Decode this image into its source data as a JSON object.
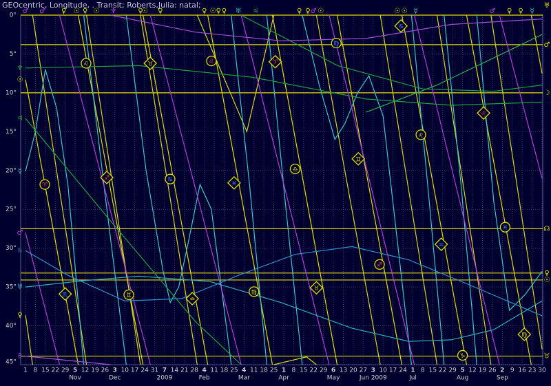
{
  "chart_data": {
    "type": "line",
    "title": "GEOcentric, Longitude, . Transit; Roberts,Julia: natal;",
    "xlim": [
      0,
      364
    ],
    "ylim": [
      0,
      45
    ],
    "grid": true,
    "yticks": [
      {
        "value": 0,
        "label": "0°"
      },
      {
        "value": 5,
        "label": "5°"
      },
      {
        "value": 10,
        "label": "10°"
      },
      {
        "value": 15,
        "label": "15°"
      },
      {
        "value": 20,
        "label": "20°"
      },
      {
        "value": 25,
        "label": "25°"
      },
      {
        "value": 30,
        "label": "30°"
      },
      {
        "value": 35,
        "label": "35°"
      },
      {
        "value": 40,
        "label": "40°"
      },
      {
        "value": 45,
        "label": "45°"
      }
    ],
    "xticks": [
      {
        "value": 0,
        "label": "1"
      },
      {
        "value": 7,
        "label": "8"
      },
      {
        "value": 14,
        "label": "15"
      },
      {
        "value": 21,
        "label": "22"
      },
      {
        "value": 28,
        "label": "29"
      },
      {
        "value": 35,
        "label": "5"
      },
      {
        "value": 42,
        "label": "12"
      },
      {
        "value": 49,
        "label": "19"
      },
      {
        "value": 56,
        "label": "26"
      },
      {
        "value": 63,
        "label": "3"
      },
      {
        "value": 70,
        "label": "10"
      },
      {
        "value": 77,
        "label": "17"
      },
      {
        "value": 84,
        "label": "24"
      },
      {
        "value": 91,
        "label": "31"
      },
      {
        "value": 98,
        "label": "7"
      },
      {
        "value": 105,
        "label": "14"
      },
      {
        "value": 112,
        "label": "21"
      },
      {
        "value": 119,
        "label": "28"
      },
      {
        "value": 126,
        "label": "4"
      },
      {
        "value": 133,
        "label": "11"
      },
      {
        "value": 140,
        "label": "18"
      },
      {
        "value": 147,
        "label": "25"
      },
      {
        "value": 154,
        "label": "4"
      },
      {
        "value": 161,
        "label": "11"
      },
      {
        "value": 168,
        "label": "18"
      },
      {
        "value": 175,
        "label": "25"
      },
      {
        "value": 182,
        "label": "1"
      },
      {
        "value": 189,
        "label": "8"
      },
      {
        "value": 196,
        "label": "15"
      },
      {
        "value": 203,
        "label": "22"
      },
      {
        "value": 210,
        "label": "29"
      },
      {
        "value": 217,
        "label": "6"
      },
      {
        "value": 224,
        "label": "13"
      },
      {
        "value": 231,
        "label": "20"
      },
      {
        "value": 238,
        "label": "27"
      },
      {
        "value": 245,
        "label": "3"
      },
      {
        "value": 252,
        "label": "10"
      },
      {
        "value": 259,
        "label": "17"
      },
      {
        "value": 266,
        "label": "24"
      },
      {
        "value": 273,
        "label": "1"
      },
      {
        "value": 280,
        "label": "8"
      },
      {
        "value": 287,
        "label": "15"
      },
      {
        "value": 294,
        "label": "22"
      },
      {
        "value": 301,
        "label": "29"
      },
      {
        "value": 308,
        "label": "5"
      },
      {
        "value": 315,
        "label": "12"
      },
      {
        "value": 322,
        "label": "19"
      },
      {
        "value": 329,
        "label": "26"
      },
      {
        "value": 336,
        "label": "2"
      },
      {
        "value": 343,
        "label": "9"
      },
      {
        "value": 350,
        "label": "16"
      },
      {
        "value": 357,
        "label": "23"
      },
      {
        "value": 364,
        "label": "30"
      }
    ],
    "month_labels": [
      {
        "value": 35,
        "label": "Nov"
      },
      {
        "value": 63,
        "label": "Dec"
      },
      {
        "value": 98,
        "label": "2009"
      },
      {
        "value": 126,
        "label": "Feb"
      },
      {
        "value": 154,
        "label": "Mar"
      },
      {
        "value": 182,
        "label": "Apr"
      },
      {
        "value": 217,
        "label": "May"
      },
      {
        "value": 245,
        "label": "Jun 2009"
      },
      {
        "value": 273,
        "label": "Jul"
      },
      {
        "value": 308,
        "label": "Aug"
      },
      {
        "value": 336,
        "label": "Sep"
      }
    ],
    "natal": [
      {
        "glyph": "♅",
        "value": 0,
        "color": "#e0e000"
      },
      {
        "glyph": "♂",
        "value": 3.8,
        "color": "#e0e000"
      },
      {
        "glyph": "☽",
        "value": 10,
        "color": "#e0e000"
      },
      {
        "glyph": "☊",
        "value": 27.5,
        "color": "#e0e000"
      },
      {
        "glyph": "♀",
        "value": 33.2,
        "color": "#e0e000"
      },
      {
        "glyph": "☉",
        "value": 34.1,
        "color": "#e0e000"
      },
      {
        "glyph": "♉",
        "value": 43.9,
        "color": "#e0e000"
      }
    ],
    "series": [
      {
        "glyph": "☉",
        "color": "#e0e000",
        "x": [
          0,
          37.2,
          37.2,
          37.2,
          82.8,
          82.8,
          82.8,
          128.4,
          128.4,
          128.4,
          174,
          174,
          174,
          219.6,
          219.6,
          219.6,
          265.2,
          265.2,
          265.2,
          310.8,
          310.8,
          310.8,
          356.4,
          356.4,
          356.4,
          364
        ],
        "values": [
          8.3,
          45,
          null,
          0,
          45,
          null,
          0,
          45,
          null,
          0,
          45,
          null,
          0,
          45,
          null,
          0,
          45,
          null,
          0,
          45,
          null,
          0,
          45,
          null,
          0,
          7.5
        ]
      },
      {
        "glyph": "♀",
        "color": "#d8d820",
        "x": [
          0,
          5,
          5,
          5,
          43,
          43,
          43,
          81,
          81,
          81,
          121,
          121,
          121,
          156,
          175,
          175,
          175,
          198,
          205,
          205,
          205,
          250,
          250,
          250,
          290,
          290,
          290,
          328,
          328,
          328,
          364
        ],
        "values": [
          38.6,
          45,
          null,
          0,
          45,
          null,
          0,
          45,
          null,
          0,
          45,
          null,
          0,
          15,
          0,
          null,
          45,
          44,
          45,
          null,
          0,
          45,
          null,
          0,
          45,
          null,
          0,
          45,
          null,
          0,
          43
        ]
      },
      {
        "glyph": "☿",
        "color": "#40c8c8",
        "x": [
          0,
          7,
          14,
          22,
          30,
          41,
          41,
          41,
          56,
          71,
          71,
          71,
          85,
          97,
          102,
          108,
          115,
          123,
          131,
          145,
          145,
          145,
          158,
          170,
          170,
          170,
          183,
          195,
          195,
          195,
          207,
          218,
          225,
          234,
          242,
          252,
          272,
          272,
          272,
          284,
          295,
          295,
          295,
          307,
          318,
          318,
          318,
          330,
          341,
          352,
          364
        ],
        "values": [
          20.1,
          15,
          7,
          12,
          22,
          45,
          null,
          0,
          23,
          45,
          null,
          0,
          20,
          33,
          37,
          35,
          29,
          21.8,
          25,
          45,
          null,
          0,
          22,
          45,
          null,
          0,
          24,
          45,
          null,
          0,
          9,
          16,
          14,
          10,
          7.8,
          13,
          45,
          null,
          0,
          23,
          45,
          null,
          0,
          22,
          45,
          null,
          0,
          24,
          38,
          36,
          33
        ]
      },
      {
        "glyph": "♂",
        "color": "#b040e0",
        "x": [
          0,
          24,
          24,
          24,
          88,
          88,
          88,
          152,
          152,
          152,
          214,
          214,
          214,
          274,
          274,
          274,
          334,
          334,
          334,
          364
        ],
        "values": [
          28,
          45,
          null,
          0,
          45,
          null,
          0,
          45,
          null,
          0,
          45,
          null,
          0,
          45,
          null,
          0,
          45,
          null,
          0,
          21
        ]
      },
      {
        "glyph": "♃",
        "color": "#20a040",
        "x": [
          0,
          60,
          120,
          152,
          152,
          152,
          220,
          280,
          330,
          364
        ],
        "values": [
          13.3,
          26.5,
          39.5,
          45,
          null,
          0,
          6.5,
          9.5,
          9.8,
          9.0
        ]
      },
      {
        "glyph": "♆",
        "color": "#20a040",
        "x": [
          0,
          80,
          160,
          240,
          300,
          364
        ],
        "values": [
          6.8,
          6.5,
          8.0,
          10.8,
          11.6,
          11.2
        ]
      },
      {
        "color": "#30b050",
        "x": [
          240,
          290,
          330,
          364
        ],
        "values": [
          12.5,
          9,
          5.5,
          2.5
        ]
      },
      {
        "glyph": "♄",
        "color": "#3090d0",
        "x": [
          0,
          30,
          70,
          110,
          150,
          190,
          230,
          270,
          310,
          364
        ],
        "values": [
          30.3,
          33.5,
          36.8,
          36.5,
          33.5,
          30.8,
          29.8,
          31.5,
          34.5,
          38.7
        ]
      },
      {
        "glyph": "♅",
        "color": "#30b0c0",
        "x": [
          0,
          40,
          80,
          130,
          180,
          230,
          270,
          300,
          330,
          364
        ],
        "values": [
          35,
          34.2,
          33.6,
          34.3,
          37,
          40.3,
          42,
          41.8,
          40.5,
          36.8
        ]
      },
      {
        "glyph": "♇",
        "color": "#a050e0",
        "x": [
          0,
          60,
          60,
          60,
          120,
          180,
          240,
          300,
          364
        ],
        "values": [
          43.9,
          45,
          null,
          0,
          2.2,
          3.3,
          3.0,
          1.2,
          0.5
        ]
      }
    ],
    "markers": [
      {
        "x": 42.7,
        "value": 6.2,
        "glyph": "♌",
        "shape": "circle",
        "color": "#e0e000"
      },
      {
        "x": 87.9,
        "value": 6.2,
        "glyph": "♉",
        "shape": "diamond",
        "color": "#e0e000"
      },
      {
        "x": 131,
        "value": 5.9,
        "glyph": "♌",
        "shape": "circle",
        "color": "#ff4040"
      },
      {
        "x": 176,
        "value": 6.0,
        "glyph": "♈",
        "shape": "diamond",
        "color": "#ff4040"
      },
      {
        "x": 219,
        "value": 3.6,
        "glyph": "♍",
        "shape": "circle",
        "color": "#4080ff"
      },
      {
        "x": 264.6,
        "value": 1.4,
        "glyph": "♋",
        "shape": "diamond",
        "color": "#4080ff"
      },
      {
        "x": 278.6,
        "value": 15.4,
        "glyph": "♌",
        "shape": "circle",
        "color": "#e0e000"
      },
      {
        "x": 322.8,
        "value": 12.6,
        "glyph": "♌",
        "shape": "diamond",
        "color": "#ff4040"
      },
      {
        "x": 13.6,
        "value": 21.8,
        "glyph": "♈",
        "shape": "circle",
        "color": "#ff4040"
      },
      {
        "x": 57.3,
        "value": 20.9,
        "glyph": "♐",
        "shape": "diamond",
        "color": "#ff4040"
      },
      {
        "x": 101.9,
        "value": 21.1,
        "glyph": "♋",
        "shape": "circle",
        "color": "#4080ff"
      },
      {
        "x": 147,
        "value": 21.6,
        "glyph": "♓",
        "shape": "diamond",
        "color": "#4080ff"
      },
      {
        "x": 190,
        "value": 19.8,
        "glyph": "♎",
        "shape": "circle",
        "color": "#e0e000"
      },
      {
        "x": 234.5,
        "value": 18.5,
        "glyph": "♊",
        "shape": "diamond",
        "color": "#e0e000"
      },
      {
        "x": 293,
        "value": 29.5,
        "glyph": "♒",
        "shape": "diamond",
        "color": "#4080ff"
      },
      {
        "x": 338,
        "value": 27.3,
        "glyph": "♓",
        "shape": "circle",
        "color": "#4080ff"
      },
      {
        "x": 28,
        "value": 35.9,
        "glyph": "♏",
        "shape": "diamond",
        "color": "#4080ff"
      },
      {
        "x": 72.8,
        "value": 36,
        "glyph": "♊",
        "shape": "circle",
        "color": "#e0e000"
      },
      {
        "x": 117.5,
        "value": 36.5,
        "glyph": "♒",
        "shape": "diamond",
        "color": "#e0e000"
      },
      {
        "x": 161,
        "value": 35.6,
        "glyph": "♍",
        "shape": "circle",
        "color": "#e0e000"
      },
      {
        "x": 205,
        "value": 35.1,
        "glyph": "♉",
        "shape": "diamond",
        "color": "#e0e000"
      },
      {
        "x": 249.5,
        "value": 32.1,
        "glyph": "♐",
        "shape": "circle",
        "color": "#ff4040"
      },
      {
        "x": 308,
        "value": 43.8,
        "glyph": "♑",
        "shape": "circle",
        "color": "#e0e000"
      },
      {
        "x": 351.5,
        "value": 41.1,
        "glyph": "♍",
        "shape": "diamond",
        "color": "#e0e000"
      }
    ],
    "top_glyphs": [
      {
        "x": 0,
        "glyph": "♂",
        "color": "#c040e0"
      },
      {
        "x": 12,
        "glyph": "♂",
        "color": "#c040e0"
      },
      {
        "x": 27,
        "glyph": "♀",
        "color": "#e0e000"
      },
      {
        "x": 36,
        "glyph": "☉",
        "color": "#e0e000"
      },
      {
        "x": 42,
        "glyph": "♀",
        "color": "#e0e000"
      },
      {
        "x": 50,
        "glyph": "☉",
        "color": "#e0e000"
      },
      {
        "x": 62,
        "glyph": "♆",
        "color": "#c040e0"
      },
      {
        "x": 81,
        "glyph": "♀",
        "color": "#e0e000"
      },
      {
        "x": 84,
        "glyph": "☉",
        "color": "#e0e000"
      },
      {
        "x": 95,
        "glyph": "♀",
        "color": "#e0e000"
      },
      {
        "x": 126,
        "glyph": "♀",
        "color": "#e0e000"
      },
      {
        "x": 132,
        "glyph": "☉",
        "color": "#e0e000"
      },
      {
        "x": 136,
        "glyph": "♀",
        "color": "#e0e000"
      },
      {
        "x": 140,
        "glyph": "♀",
        "color": "#e0e000"
      },
      {
        "x": 150,
        "glyph": "♅",
        "color": "#40c8c8"
      },
      {
        "x": 162,
        "glyph": "♃",
        "color": "#20a040"
      },
      {
        "x": 193,
        "glyph": "♀",
        "color": "#e0e000"
      },
      {
        "x": 199,
        "glyph": "♀",
        "color": "#e0e000"
      },
      {
        "x": 203,
        "glyph": "♂",
        "color": "#c040e0"
      },
      {
        "x": 208,
        "glyph": "☉",
        "color": "#e0e000"
      },
      {
        "x": 262,
        "glyph": "☉",
        "color": "#e0e000"
      },
      {
        "x": 267,
        "glyph": "☉",
        "color": "#e0e000"
      },
      {
        "x": 275,
        "glyph": "☿",
        "color": "#40c8c8"
      },
      {
        "x": 329,
        "glyph": "♂",
        "color": "#c040e0"
      },
      {
        "x": 341,
        "glyph": "♀",
        "color": "#e0e000"
      },
      {
        "x": 349,
        "glyph": "♀",
        "color": "#e0e000"
      },
      {
        "x": 357,
        "glyph": "☿",
        "color": "#40c8c8"
      }
    ]
  }
}
